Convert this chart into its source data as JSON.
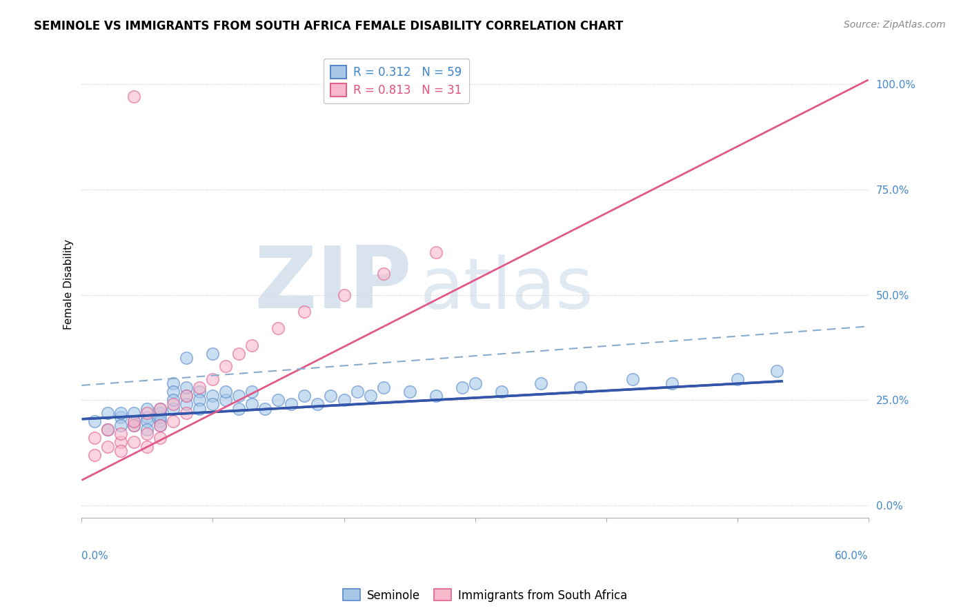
{
  "title": "SEMINOLE VS IMMIGRANTS FROM SOUTH AFRICA FEMALE DISABILITY CORRELATION CHART",
  "source_text": "Source: ZipAtlas.com",
  "ylabel": "Female Disability",
  "y_tick_values": [
    0.0,
    0.25,
    0.5,
    0.75,
    1.0
  ],
  "x_range": [
    0.0,
    0.6
  ],
  "y_range": [
    -0.03,
    1.08
  ],
  "seminole_color": "#a8c8e8",
  "seminole_edge": "#5588cc",
  "sa_color": "#f8b8cc",
  "sa_edge": "#e06090",
  "line_blue": "#3355aa",
  "line_pink": "#e05888",
  "dashed_color": "#88aacc",
  "watermark_color": "#c8d8e8",
  "background_color": "#ffffff",
  "grid_color": "#cccccc",
  "title_color": "#000000",
  "source_color": "#888888",
  "axis_label_color": "#4488cc",
  "legend_blue_text": "#4488cc",
  "legend_pink_text": "#e05888",
  "seminole_x": [
    0.01,
    0.02,
    0.02,
    0.03,
    0.03,
    0.03,
    0.04,
    0.04,
    0.04,
    0.05,
    0.05,
    0.05,
    0.05,
    0.06,
    0.06,
    0.06,
    0.06,
    0.06,
    0.07,
    0.07,
    0.07,
    0.07,
    0.08,
    0.08,
    0.08,
    0.09,
    0.09,
    0.09,
    0.1,
    0.1,
    0.11,
    0.11,
    0.12,
    0.12,
    0.13,
    0.13,
    0.14,
    0.15,
    0.16,
    0.17,
    0.18,
    0.19,
    0.2,
    0.21,
    0.22,
    0.23,
    0.25,
    0.27,
    0.29,
    0.3,
    0.32,
    0.35,
    0.38,
    0.42,
    0.45,
    0.5,
    0.53,
    0.1,
    0.08
  ],
  "seminole_y": [
    0.2,
    0.22,
    0.18,
    0.21,
    0.19,
    0.22,
    0.2,
    0.22,
    0.19,
    0.21,
    0.2,
    0.23,
    0.18,
    0.22,
    0.2,
    0.21,
    0.19,
    0.23,
    0.29,
    0.27,
    0.23,
    0.25,
    0.26,
    0.28,
    0.24,
    0.27,
    0.25,
    0.23,
    0.26,
    0.24,
    0.25,
    0.27,
    0.23,
    0.26,
    0.24,
    0.27,
    0.23,
    0.25,
    0.24,
    0.26,
    0.24,
    0.26,
    0.25,
    0.27,
    0.26,
    0.28,
    0.27,
    0.26,
    0.28,
    0.29,
    0.27,
    0.29,
    0.28,
    0.3,
    0.29,
    0.3,
    0.32,
    0.36,
    0.35
  ],
  "sa_x": [
    0.01,
    0.01,
    0.02,
    0.02,
    0.03,
    0.03,
    0.03,
    0.04,
    0.04,
    0.04,
    0.05,
    0.05,
    0.05,
    0.06,
    0.06,
    0.06,
    0.07,
    0.07,
    0.08,
    0.08,
    0.09,
    0.1,
    0.11,
    0.12,
    0.13,
    0.15,
    0.17,
    0.2,
    0.23,
    0.27,
    0.04
  ],
  "sa_y": [
    0.16,
    0.12,
    0.14,
    0.18,
    0.15,
    0.13,
    0.17,
    0.19,
    0.15,
    0.2,
    0.17,
    0.22,
    0.14,
    0.19,
    0.23,
    0.16,
    0.24,
    0.2,
    0.26,
    0.22,
    0.28,
    0.3,
    0.33,
    0.36,
    0.38,
    0.42,
    0.46,
    0.5,
    0.55,
    0.6,
    0.97
  ],
  "sem_line_x0": 0.0,
  "sem_line_x1": 0.535,
  "sem_line_y0": 0.205,
  "sem_line_y1": 0.295,
  "dash_line_x0": 0.0,
  "dash_line_x1": 0.6,
  "dash_line_y0": 0.285,
  "dash_line_y1": 0.425,
  "sa_line_x0": 0.0,
  "sa_line_x1": 0.6,
  "sa_line_y0": 0.06,
  "sa_line_y1": 1.01
}
